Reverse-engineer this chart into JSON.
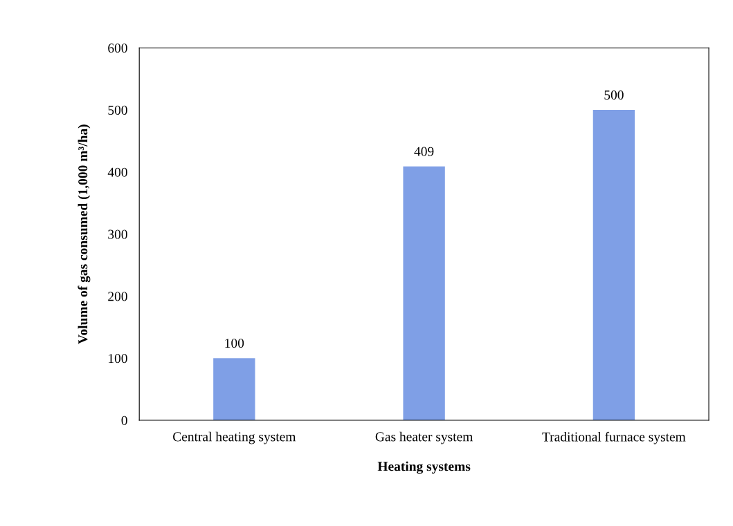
{
  "chart_data": {
    "type": "bar",
    "xlabel": "Heating systems",
    "ylabel": "Volume of gas consumed (1,000 m³/ha)",
    "categories": [
      "Central heating system",
      "Gas heater system",
      "Traditional furnace system"
    ],
    "values": [
      100,
      409,
      500
    ],
    "color": "#7f9fe6",
    "ylim": [
      0,
      600
    ],
    "yticks": [
      0,
      100,
      200,
      300,
      400,
      500,
      600
    ],
    "data_labels": true,
    "grid": false
  }
}
